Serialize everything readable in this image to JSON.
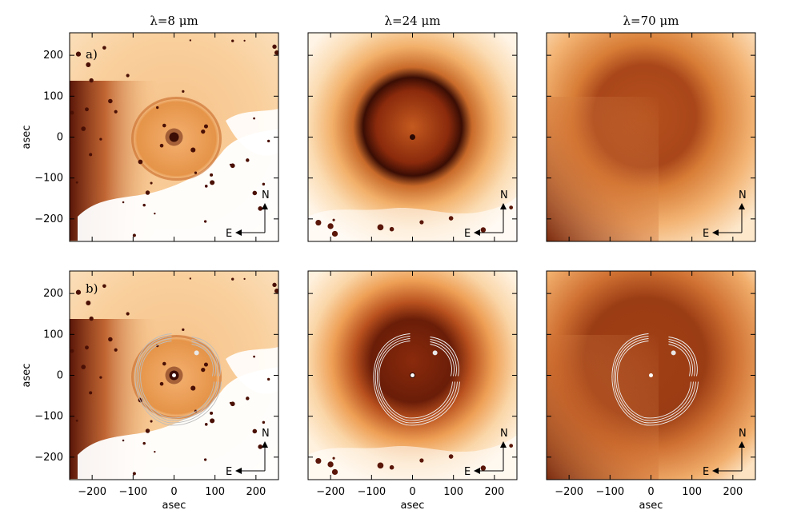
{
  "figure": {
    "column_titles": [
      "λ=8 μm",
      "λ=24 μm",
      "λ=70 μm"
    ],
    "row_labels": [
      "a)",
      "b)"
    ],
    "axis_label": "asec",
    "y_ticks": [
      "200",
      "100",
      "0",
      "−100",
      "−200"
    ],
    "x_ticks": [
      "−200",
      "−100",
      "0",
      "100",
      "200"
    ],
    "compass": {
      "north": "N",
      "east": "E"
    }
  },
  "colors": {
    "background": "#ffffff",
    "light": "#fde5c4",
    "mid": "#f0a95c",
    "dark": "#b8501e",
    "darkest": "#3c0f05",
    "contour": "#e8e8e8"
  }
}
